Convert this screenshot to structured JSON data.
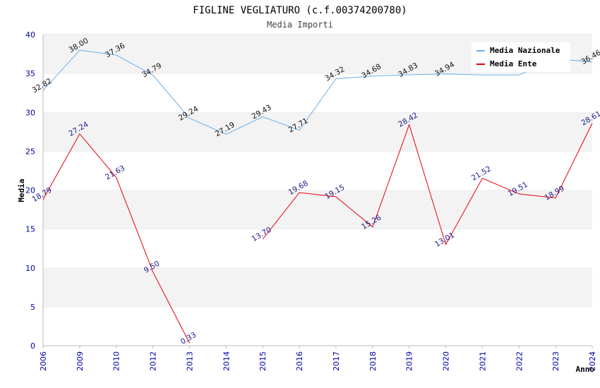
{
  "chart_data": {
    "type": "line",
    "title": "FIGLINE VEGLIATURO (c.f.00374200780)",
    "subtitle": "Media Importi",
    "xlabel": "Anno",
    "ylabel": "Media",
    "ylim": [
      0,
      40
    ],
    "y_ticks": [
      "0",
      "5",
      "10",
      "15",
      "20",
      "25",
      "30",
      "35",
      "40"
    ],
    "categories": [
      "2006",
      "2009",
      "2010",
      "2012",
      "2013",
      "2014",
      "2015",
      "2016",
      "2017",
      "2018",
      "2019",
      "2020",
      "2021",
      "2022",
      "2023",
      "2024"
    ],
    "grid": true,
    "legend_position": "top-right",
    "series": [
      {
        "name": "Media Nazionale",
        "color": "#6aaee8",
        "values": [
          32.82,
          38.0,
          37.36,
          34.79,
          29.24,
          27.19,
          29.43,
          27.71,
          34.32,
          34.68,
          34.83,
          34.94,
          34.8,
          34.8,
          36.9,
          36.46
        ],
        "labels": [
          "32.82",
          "38.00",
          "37.36",
          "34.79",
          "29.24",
          "27.19",
          "29.43",
          "27.71",
          "34.32",
          "34.68",
          "34.83",
          "34.94",
          "",
          "",
          "",
          "36.46"
        ]
      },
      {
        "name": "Media Ente",
        "color": "#e8000a",
        "values": [
          18.79,
          27.24,
          21.63,
          9.5,
          0.33,
          null,
          13.7,
          19.68,
          19.15,
          15.26,
          28.42,
          13.01,
          21.52,
          19.51,
          18.99,
          28.61
        ],
        "labels": [
          "18.79",
          "27.24",
          "21.63",
          "9.50",
          "0.33",
          "",
          "13.70",
          "19.68",
          "19.15",
          "15.26",
          "28.42",
          "13.01",
          "21.52",
          "19.51",
          "18.99",
          "28.61"
        ]
      }
    ]
  }
}
